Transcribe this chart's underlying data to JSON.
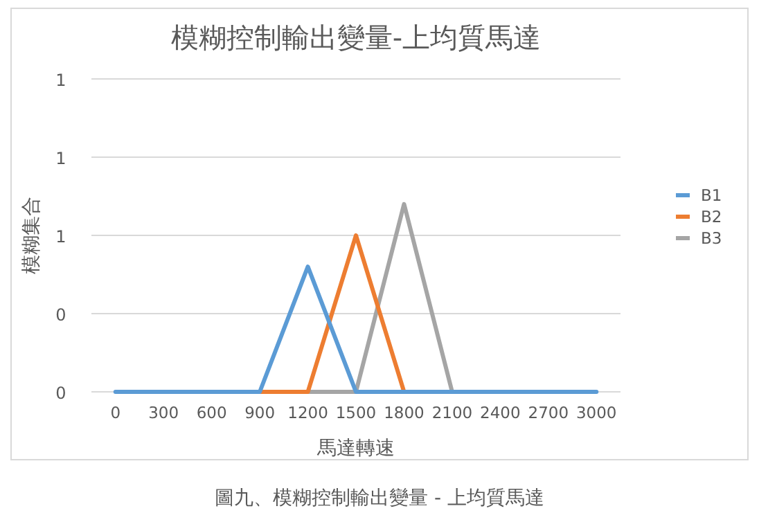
{
  "chart_data": {
    "type": "line",
    "title": "模糊控制輸出變量-上均質馬達",
    "xlabel": "馬達轉速",
    "ylabel": "模糊集合",
    "annotations": [
      "圖九、模糊控制輸出變量 - 上均質馬達"
    ],
    "xlim": [
      -150,
      3150
    ],
    "xticks": [
      0,
      300,
      600,
      900,
      1200,
      1500,
      1800,
      2100,
      2400,
      2700,
      3000
    ],
    "ylim": [
      0,
      1.2
    ],
    "yticks": [
      {
        "value": 0,
        "label": "0"
      },
      {
        "value": 0.3,
        "label": "0"
      },
      {
        "value": 0.6,
        "label": "1"
      },
      {
        "value": 0.9,
        "label": "1"
      },
      {
        "value": 1.2,
        "label": "1"
      }
    ],
    "grid": "y",
    "legend": "right",
    "marker": "none",
    "line_style": "solid",
    "series": [
      {
        "name": "B1",
        "color": "#5b9bd5",
        "x": [
          0,
          900,
          1200,
          1500,
          3000
        ],
        "values": [
          0,
          0,
          0.48,
          0,
          0
        ]
      },
      {
        "name": "B2",
        "color": "#ed7d31",
        "x": [
          900,
          1200,
          1500,
          1800
        ],
        "values": [
          0,
          0,
          0.6,
          0
        ]
      },
      {
        "name": "B3",
        "color": "#a5a5a5",
        "x": [
          1200,
          1500,
          1800,
          2100
        ],
        "values": [
          0,
          0,
          0.72,
          0
        ]
      }
    ]
  }
}
